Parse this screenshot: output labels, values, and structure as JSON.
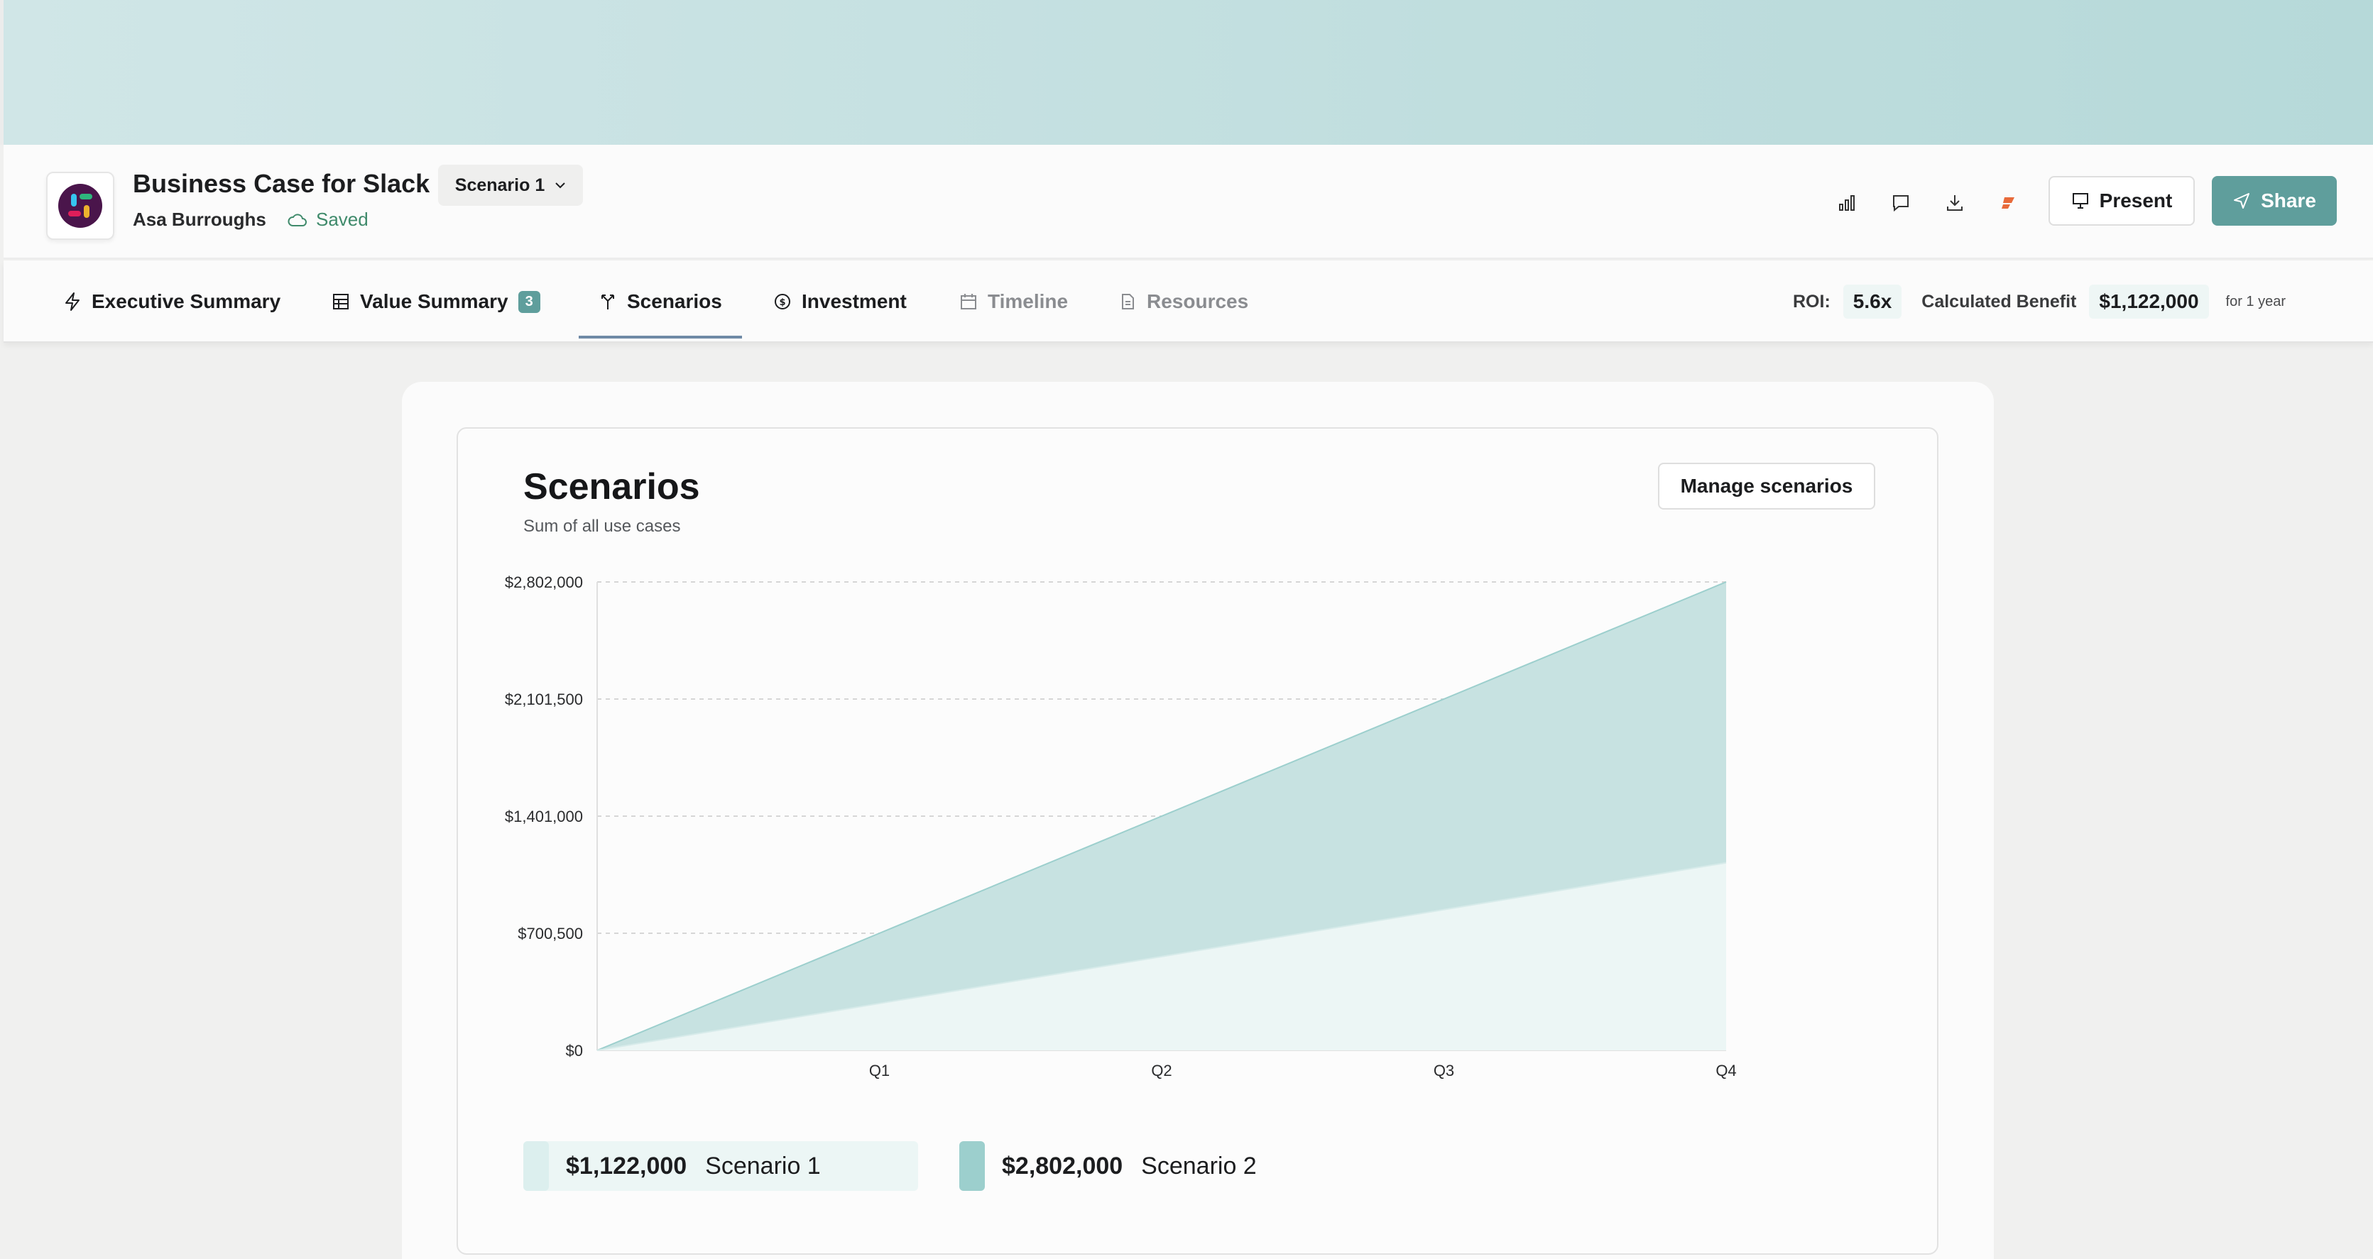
{
  "header": {
    "title": "Business Case for Slack",
    "owner": "Asa Burroughs",
    "status": "Saved",
    "scenario_select": "Scenario 1",
    "present_label": "Present",
    "share_label": "Share",
    "icons": [
      "bar-chart-icon",
      "comment-icon",
      "download-icon",
      "integration-icon"
    ]
  },
  "tabs": [
    {
      "label": "Executive Summary",
      "icon": "bolt-icon"
    },
    {
      "label": "Value Summary",
      "icon": "table-icon",
      "badge": "3"
    },
    {
      "label": "Scenarios",
      "icon": "branch-icon",
      "active": true
    },
    {
      "label": "Investment",
      "icon": "dollar-circle-icon"
    },
    {
      "label": "Timeline",
      "icon": "calendar-icon",
      "disabled": true
    },
    {
      "label": "Resources",
      "icon": "document-icon",
      "disabled": true
    }
  ],
  "metrics": {
    "roi_label": "ROI:",
    "roi_value": "5.6x",
    "benefit_label": "Calculated Benefit",
    "benefit_value": "$1,122,000",
    "benefit_note": "for 1 year"
  },
  "card": {
    "title": "Scenarios",
    "subtitle": "Sum of all use cases",
    "manage_label": "Manage scenarios"
  },
  "colors": {
    "accent": "#5f9e9c",
    "scenario1": "#ecf6f5",
    "scenario2": "#9ccfcd",
    "scenario2_area": "#c7e2e1"
  },
  "chart_data": {
    "type": "area",
    "categories": [
      "",
      "Q1",
      "Q2",
      "Q3",
      "Q4"
    ],
    "y_ticks": [
      "$0",
      "$700,500",
      "$1,401,000",
      "$2,101,500",
      "$2,802,000"
    ],
    "ylim": [
      0,
      2802000
    ],
    "grid": true,
    "series": [
      {
        "name": "Scenario 1",
        "label": "$1,122,000",
        "values": [
          0,
          280500,
          561000,
          841500,
          1122000
        ]
      },
      {
        "name": "Scenario 2",
        "label": "$2,802,000",
        "values": [
          0,
          700500,
          1401000,
          2101500,
          2802000
        ]
      }
    ]
  }
}
